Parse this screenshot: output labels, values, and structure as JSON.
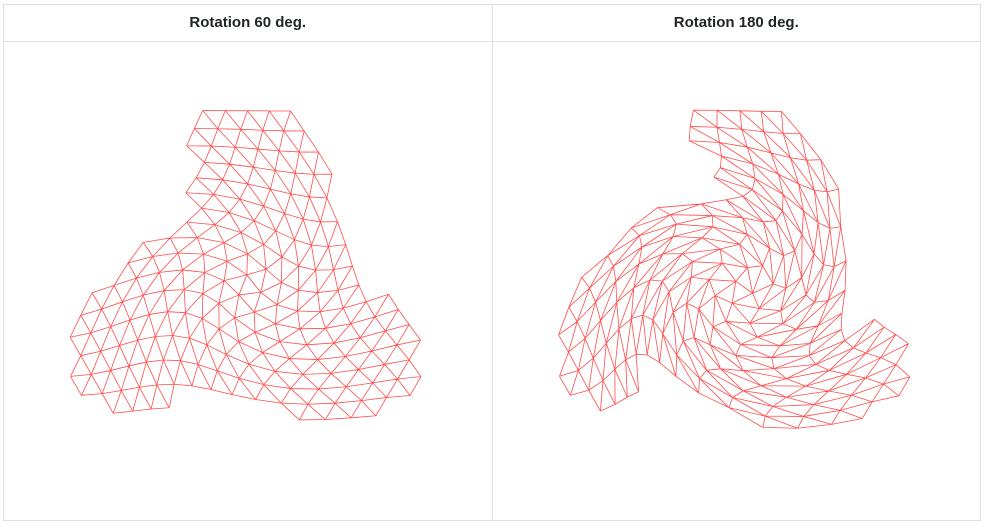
{
  "panels": [
    {
      "title": "Rotation 60 deg.",
      "rotation_deg": 60
    },
    {
      "title": "Rotation 180 deg.",
      "rotation_deg": 180
    }
  ],
  "mesh_color": "#ff4d4d"
}
